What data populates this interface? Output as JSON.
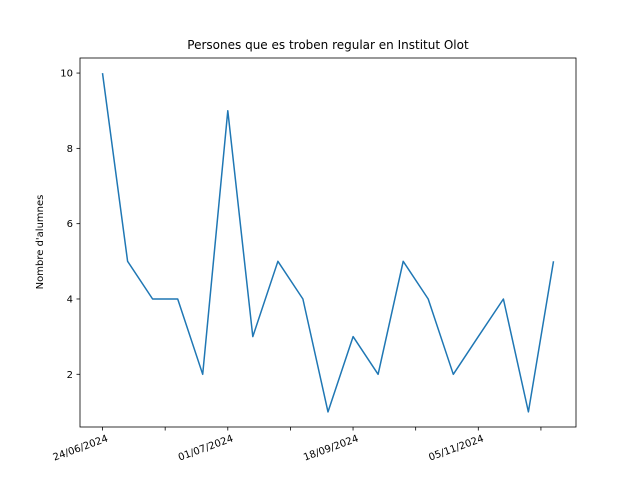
{
  "chart_data": {
    "type": "line",
    "title": "Persones que es troben regular en Institut Olot",
    "xlabel": "",
    "ylabel": "Nombre d'alumnes",
    "ylim": [
      0.6,
      10.4
    ],
    "yticks": [
      2,
      4,
      6,
      8,
      10
    ],
    "grid": false,
    "series_color": "#1f77b4",
    "x_tick_labels": [
      {
        "index": 0,
        "label": "24/06/2024"
      },
      {
        "index": 5,
        "label": "01/07/2024"
      },
      {
        "index": 10,
        "label": "18/09/2024"
      },
      {
        "index": 15,
        "label": "05/11/2024"
      }
    ],
    "x_minor_ticks": [
      2.5,
      7.5,
      12.5,
      17.5
    ],
    "values": [
      10,
      5,
      4,
      4,
      2,
      9,
      3,
      5,
      4,
      1,
      3,
      2,
      5,
      4,
      2,
      3,
      4,
      1,
      5
    ]
  }
}
